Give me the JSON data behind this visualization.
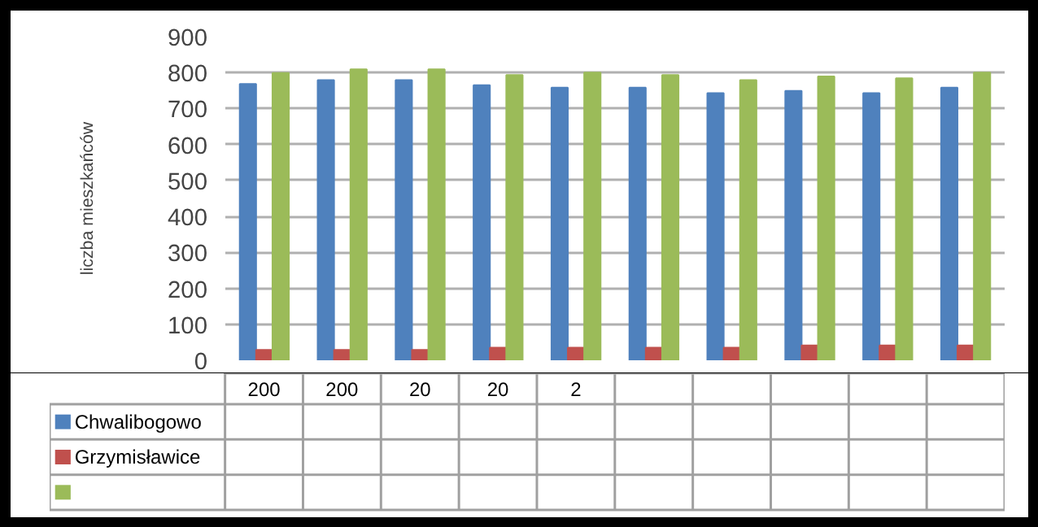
{
  "chart_data": {
    "type": "bar",
    "ylabel": "liczba mieszkańców",
    "categories": [
      "200",
      "200",
      "20",
      "20",
      "2",
      null,
      null,
      null,
      null,
      null
    ],
    "series": [
      {
        "name": "Chwalibogowo",
        "color": "#4f81bd",
        "values": [
          768,
          779,
          779,
          765,
          758,
          758,
          743,
          749,
          743,
          758
        ]
      },
      {
        "name": "Grzymisławice",
        "color": "#c0504d",
        "values": [
          29,
          29,
          29,
          35,
          35,
          35,
          35,
          41,
          41,
          41
        ]
      },
      {
        "color": "#9bbb59",
        "values": [
          799,
          809,
          809,
          793,
          800,
          793,
          779,
          789,
          784,
          800
        ]
      }
    ],
    "ylim": [
      0,
      900
    ],
    "yticks": [
      0,
      100,
      200,
      300,
      400,
      500,
      600,
      700,
      800,
      900
    ],
    "grid": "y",
    "legend": "bottom"
  }
}
